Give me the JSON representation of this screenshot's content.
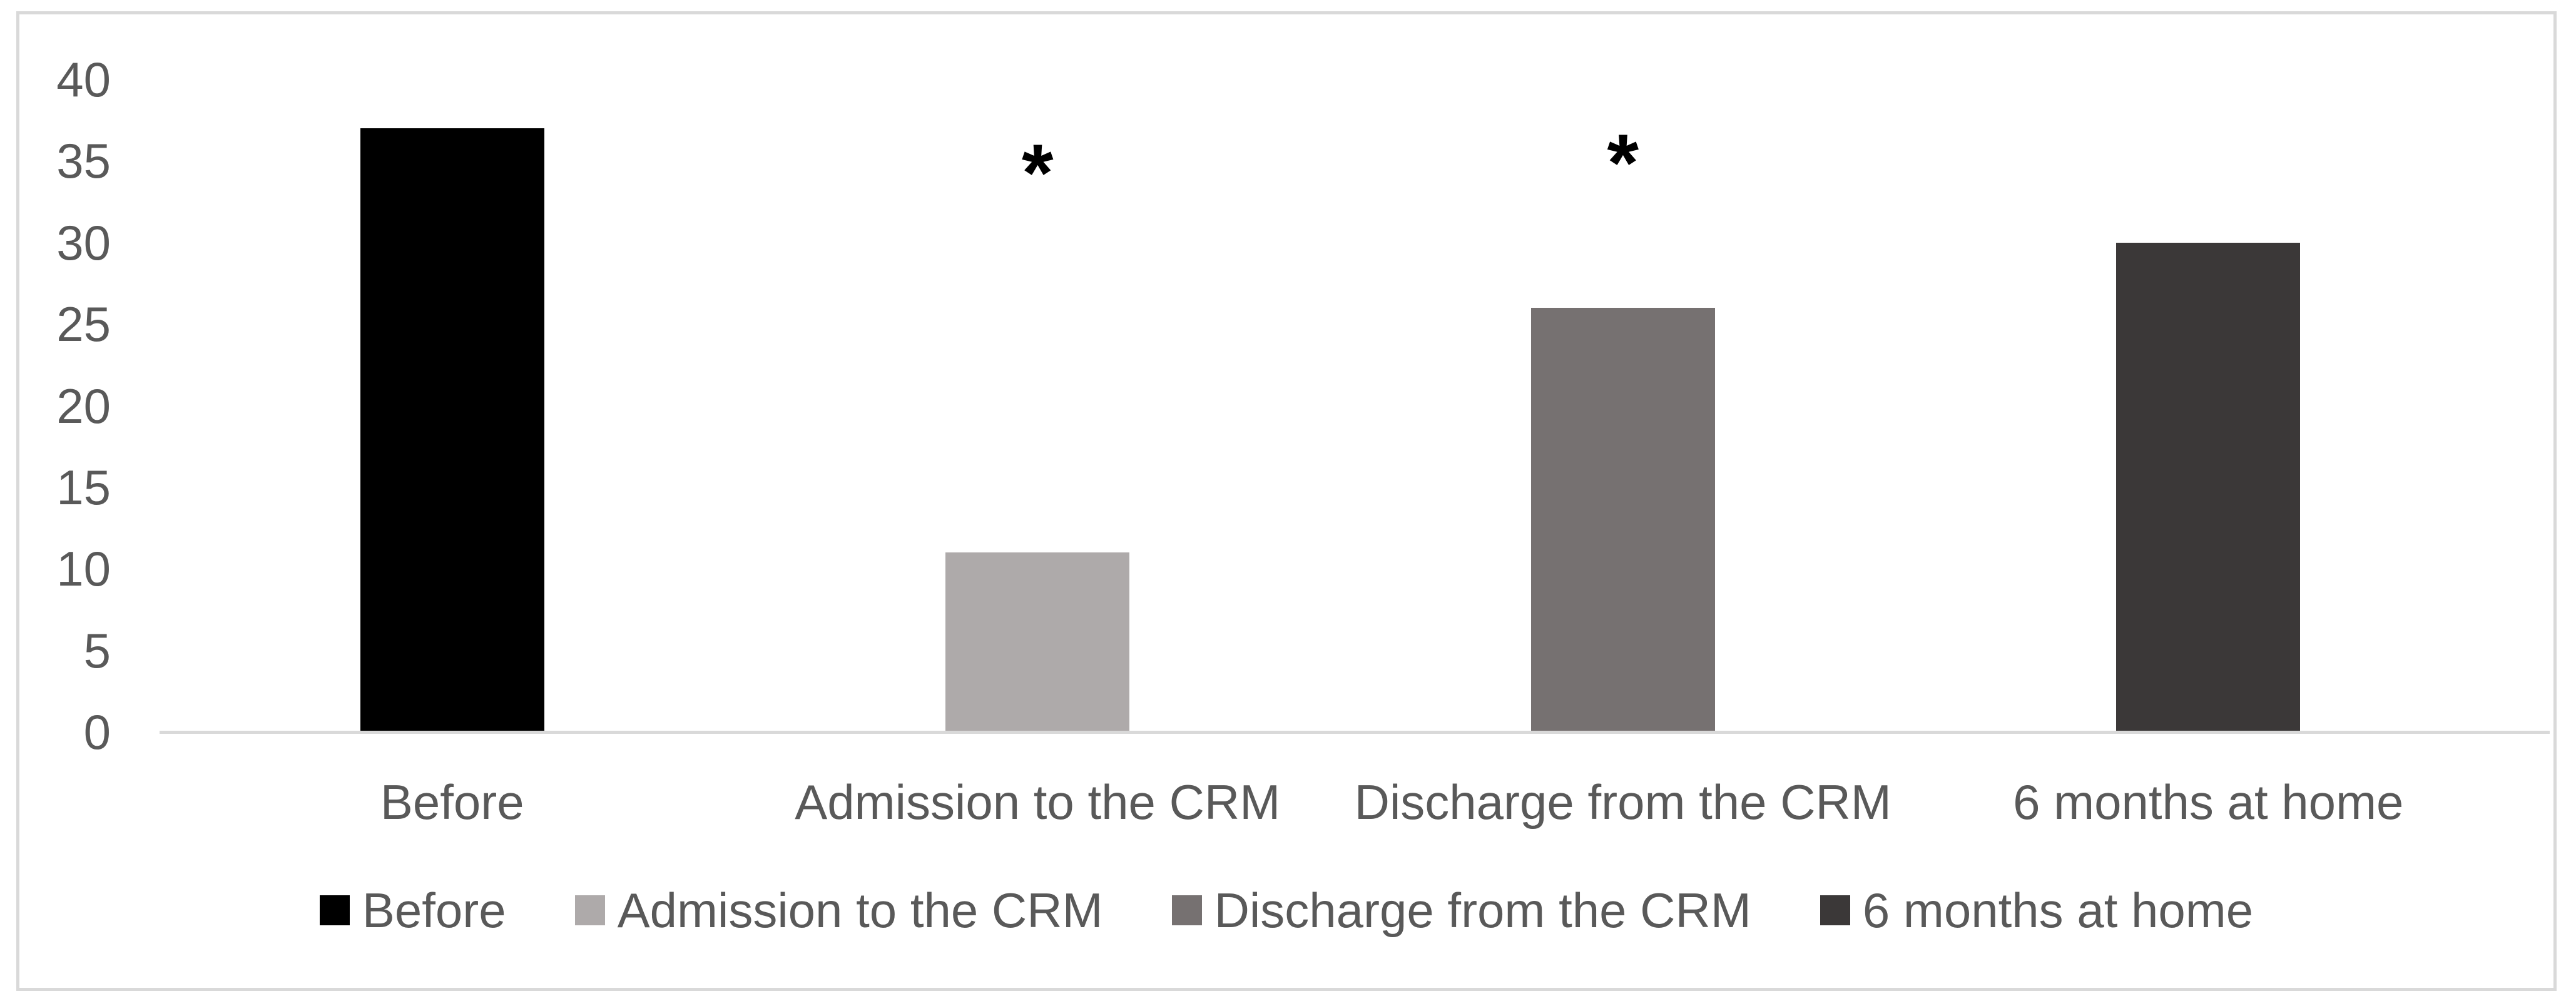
{
  "chart_data": {
    "type": "bar",
    "title": "",
    "xlabel": "",
    "ylabel": "",
    "categories": [
      "Before",
      "Admission to the CRM",
      "Discharge from the CRM",
      "6 months at home"
    ],
    "values": [
      37,
      11,
      26,
      30
    ],
    "bar_colors": [
      "#000000",
      "#AEAAAA",
      "#767171",
      "#3B3838"
    ],
    "ylim": [
      0,
      40
    ],
    "ytick_step": 5,
    "yticks": [
      0,
      5,
      10,
      15,
      20,
      25,
      30,
      35,
      40
    ],
    "grid": false,
    "annotations": [
      {
        "category": "Admission to the CRM",
        "text": "*",
        "y": 35.2
      },
      {
        "category": "Discharge from the CRM",
        "text": "*",
        "y": 35.8
      }
    ],
    "legend": {
      "position": "bottom",
      "entries": [
        "Before",
        "Admission to the CRM",
        "Discharge from the CRM",
        "6 months at home"
      ]
    }
  },
  "style": {
    "label_text_color": "#595959",
    "axis_line_color": "#D9D9D9",
    "frame_border_color": "#D9D9D9",
    "background_color": "#FFFFFF",
    "annotation_color": "#000000"
  }
}
